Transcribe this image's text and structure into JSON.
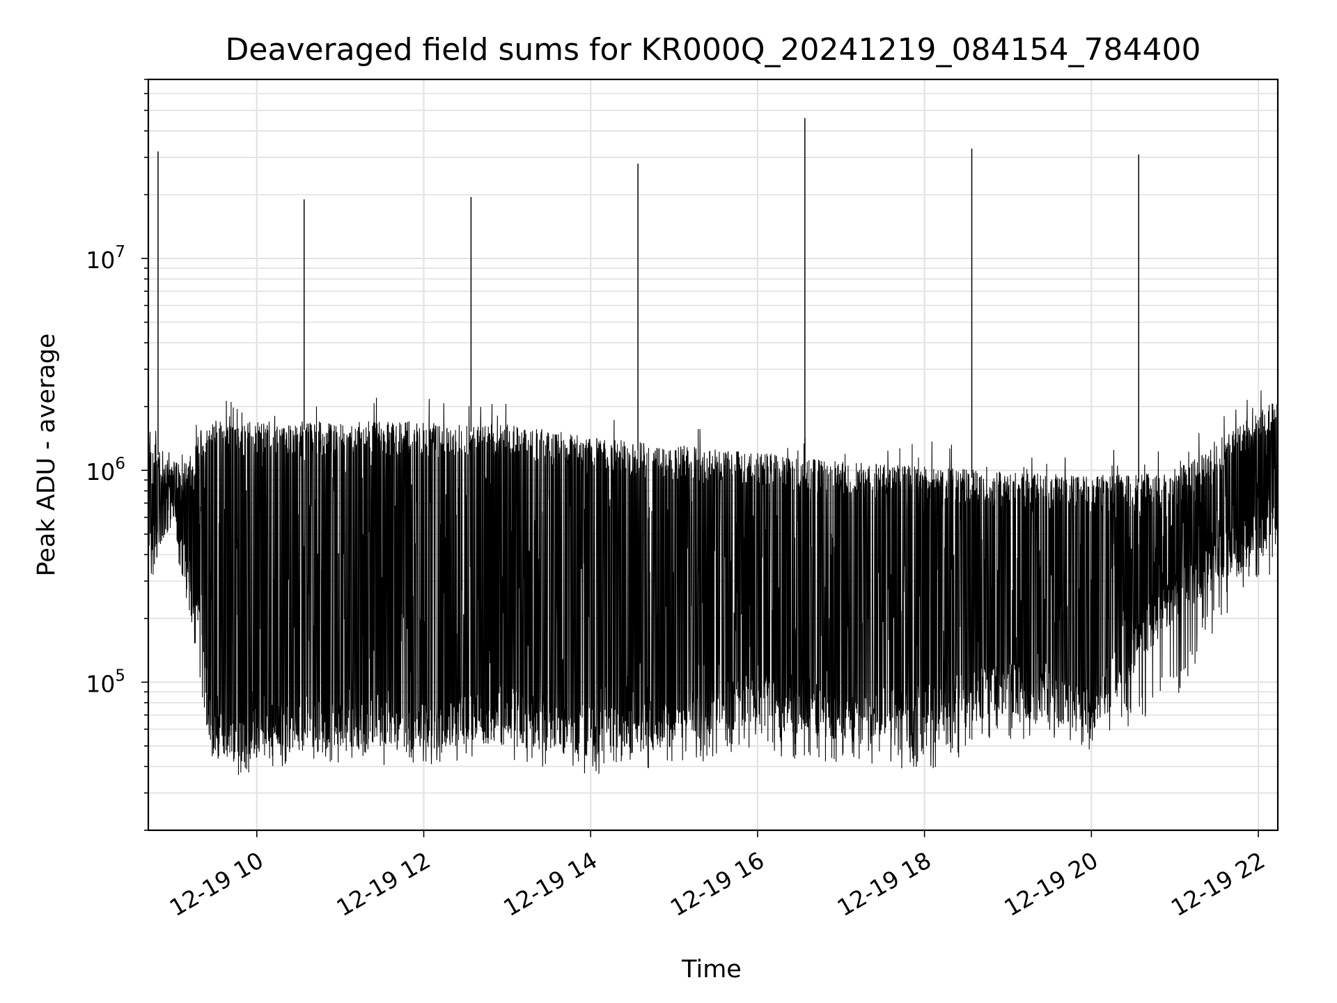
{
  "chart_data": {
    "type": "line",
    "title": "Deaveraged field sums for KR000Q_20241219_084154_784400",
    "xlabel": "Time",
    "ylabel": "Peak ADU - average",
    "y_scale": "log",
    "ylim": [
      20000,
      70000000
    ],
    "xlim": [
      "2024-12-19T08:42",
      "2024-12-19T22:14"
    ],
    "x_ticks": [
      "12-19 10",
      "12-19 12",
      "12-19 14",
      "12-19 16",
      "12-19 18",
      "12-19 20",
      "12-19 22"
    ],
    "y_ticks": [
      {
        "base": "10",
        "exp": "5",
        "value": 100000
      },
      {
        "base": "10",
        "exp": "6",
        "value": 1000000
      },
      {
        "base": "10",
        "exp": "7",
        "value": 10000000
      }
    ],
    "grid": true,
    "line_color": "#000000",
    "series": [
      {
        "x": [
          "2024-12-19T08:42",
          "2024-12-19T08:48",
          "2024-12-19T09:00",
          "2024-12-19T09:10",
          "2024-12-19T09:20",
          "2024-12-19T09:25",
          "2024-12-19T09:35",
          "2024-12-19T10:00",
          "2024-12-19T11:00",
          "2024-12-19T12:00",
          "2024-12-19T13:00",
          "2024-12-19T14:00",
          "2024-12-19T15:00",
          "2024-12-19T16:00",
          "2024-12-19T17:00",
          "2024-12-19T18:00",
          "2024-12-19T19:00",
          "2024-12-19T20:00",
          "2024-12-19T21:00",
          "2024-12-19T21:30",
          "2024-12-19T22:00",
          "2024-12-19T22:14"
        ],
        "upper": [
          1500000,
          1200000,
          1000000,
          1000000,
          1500000,
          1500000,
          1550000,
          1550000,
          1550000,
          1550000,
          1500000,
          1300000,
          1200000,
          1100000,
          1000000,
          950000,
          900000,
          850000,
          900000,
          1300000,
          1700000,
          2000000
        ],
        "lower": [
          400000,
          500000,
          700000,
          300000,
          150000,
          60000,
          50000,
          55000,
          60000,
          60000,
          65000,
          55000,
          60000,
          80000,
          65000,
          70000,
          90000,
          70000,
          250000,
          350000,
          450000,
          600000
        ],
        "floor": [
          300000,
          350000,
          600000,
          220000,
          100000,
          50000,
          38000,
          42000,
          45000,
          45000,
          48000,
          40000,
          45000,
          50000,
          45000,
          42000,
          60000,
          50000,
          90000,
          200000,
          300000,
          400000
        ],
        "spikes": [
          {
            "x": "2024-12-19T08:49",
            "y": 32000000
          },
          {
            "x": "2024-12-19T10:34",
            "y": 19000000
          },
          {
            "x": "2024-12-19T12:34",
            "y": 19500000
          },
          {
            "x": "2024-12-19T14:34",
            "y": 28000000
          },
          {
            "x": "2024-12-19T16:34",
            "y": 46000000
          },
          {
            "x": "2024-12-19T18:34",
            "y": 33000000
          },
          {
            "x": "2024-12-19T20:34",
            "y": 31000000
          }
        ]
      }
    ]
  }
}
